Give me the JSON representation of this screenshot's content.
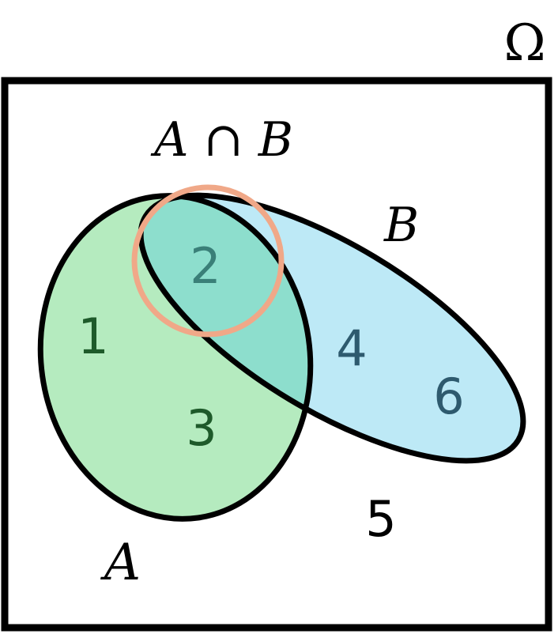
{
  "diagram": {
    "universe_label": "Ω",
    "intersection_label": "A ∩ B",
    "set_a_label": "A",
    "set_b_label": "B",
    "elements": {
      "e1": "1",
      "e2": "2",
      "e3": "3",
      "e4": "4",
      "e5": "5",
      "e6": "6"
    },
    "colors": {
      "set_a_fill": "#b5ebbf",
      "set_b_fill": "#bde9f6",
      "overlap_fill": "#8ddecd",
      "highlight_ring": "#f0a888",
      "outline": "#000000",
      "a_text": "#1e5a2a",
      "b_text": "#2e5a6e",
      "overlap_text": "#3a7f78"
    }
  }
}
